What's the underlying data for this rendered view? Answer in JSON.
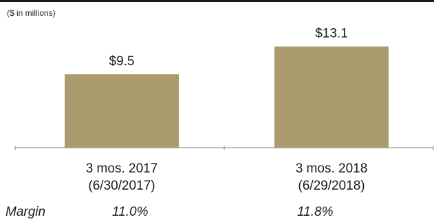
{
  "chart_data": {
    "type": "bar",
    "units_label": "($ in millions)",
    "categories": [
      [
        "3 mos. 2017",
        "(6/30/2017)"
      ],
      [
        "3 mos. 2018",
        "(6/29/2018)"
      ]
    ],
    "values": [
      9.5,
      13.1
    ],
    "value_labels": [
      "$9.5",
      "$13.1"
    ],
    "bar_color": "#ab9c6d",
    "ylim": [
      0,
      16
    ]
  },
  "margin_row": {
    "label": "Margin",
    "values": [
      "11.0%",
      "11.8%"
    ]
  }
}
